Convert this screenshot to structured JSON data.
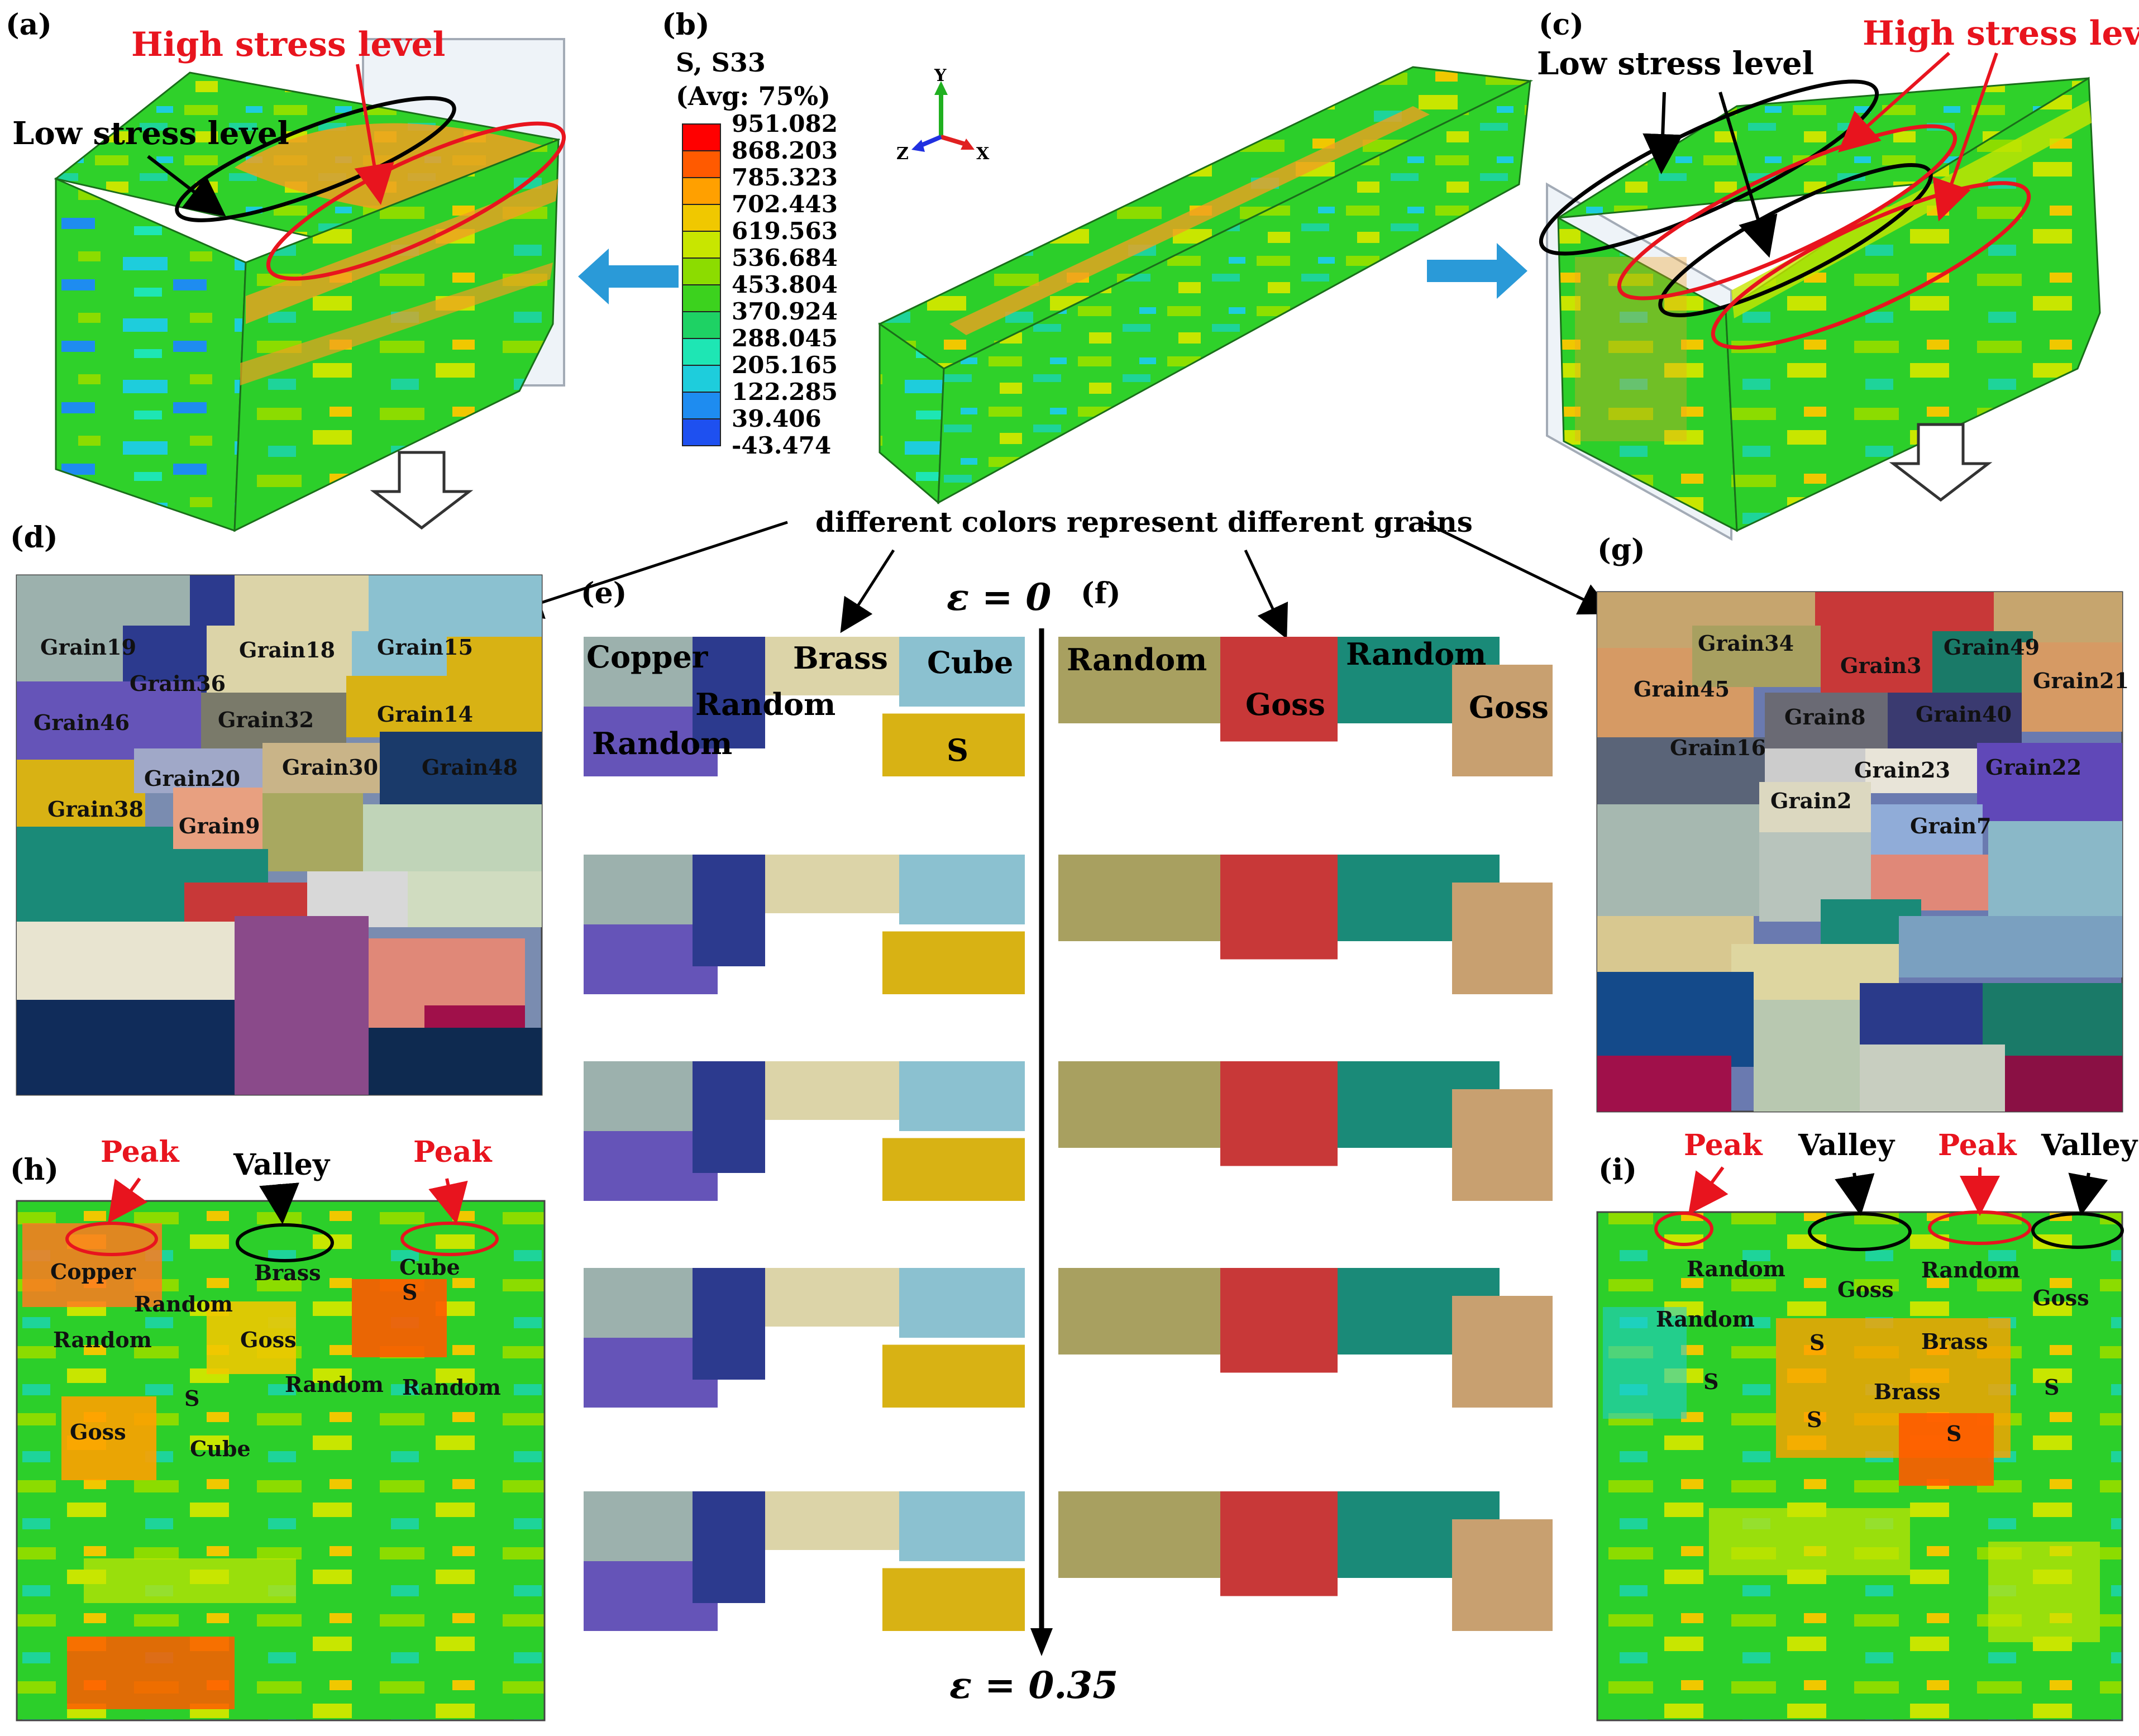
{
  "panels": {
    "a": "(a)",
    "b": "(b)",
    "c": "(c)",
    "d": "(d)",
    "e": "(e)",
    "f": "(f)",
    "g": "(g)",
    "h": "(h)",
    "i": "(i)"
  },
  "annotations": {
    "high_stress": "High stress level",
    "low_stress": "Low stress level",
    "grains_note": "different colors represent different grains",
    "peak": "Peak",
    "valley": "Valley"
  },
  "legend": {
    "title": [
      "S, S33",
      "(Avg: 75%)"
    ],
    "values": [
      "951.082",
      "868.203",
      "785.323",
      "702.443",
      "619.563",
      "536.684",
      "453.804",
      "370.924",
      "288.045",
      "205.165",
      "122.285",
      "39.406",
      "-43.474"
    ],
    "colors": [
      "#ff0000",
      "#ff5a00",
      "#ffa000",
      "#f0c800",
      "#c8e600",
      "#8cdc00",
      "#3cd21e",
      "#1ed264",
      "#1ee6b4",
      "#1ecddc",
      "#1e8cf0",
      "#1e50f0",
      "#1414e6"
    ]
  },
  "axes_triad": {
    "x": "X",
    "y": "Y",
    "z": "Z"
  },
  "strain": {
    "start": "ε = 0",
    "end": "ε = 0.35"
  },
  "panel_d_grains": [
    "Grain19",
    "Grain18",
    "Grain15",
    "Grain36",
    "Grain46",
    "Grain32",
    "Grain14",
    "Grain20",
    "Grain30",
    "Grain48",
    "Grain38",
    "Grain9"
  ],
  "panel_g_grains": [
    "Grain34",
    "Grain3",
    "Grain49",
    "Grain45",
    "Grain21",
    "Grain8",
    "Grain40",
    "Grain16",
    "Grain23",
    "Grain22",
    "Grain2",
    "Grain7"
  ],
  "panel_e_labels": [
    "Copper",
    "Brass",
    "Cube",
    "Random",
    "Random",
    "S"
  ],
  "panel_f_labels": [
    "Random",
    "Random",
    "Goss",
    "Goss"
  ],
  "panel_h_labels": [
    "Copper",
    "Brass",
    "Cube",
    "Random",
    "Random",
    "Goss",
    "S",
    "S",
    "Random",
    "Random",
    "Goss",
    "Cube"
  ],
  "panel_i_labels": [
    "Random",
    "Goss",
    "Random",
    "Goss",
    "Random",
    "S",
    "Brass",
    "S",
    "S",
    "Brass",
    "S",
    "S"
  ]
}
